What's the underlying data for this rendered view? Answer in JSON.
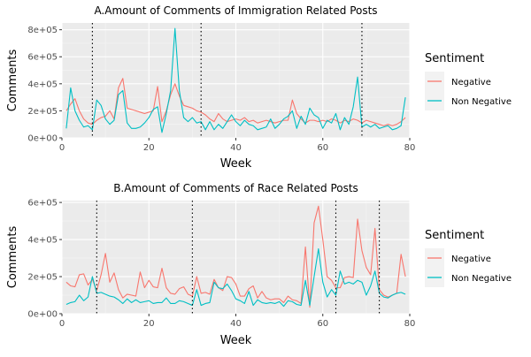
{
  "chart_data": [
    {
      "type": "line",
      "title": "A.Amount of Comments of Immigration Related Posts",
      "xlabel": "Week",
      "ylabel": "Comments",
      "xlim": [
        0,
        80
      ],
      "ylim": [
        0,
        850000
      ],
      "xticks": [
        0,
        20,
        40,
        60,
        80
      ],
      "xtick_labels": [
        "0",
        "20",
        "40",
        "60",
        "80"
      ],
      "yticks": [
        0,
        200000,
        400000,
        600000,
        800000
      ],
      "ytick_labels": [
        "0e+00",
        "2e+05",
        "4e+05",
        "6e+05",
        "8e+05"
      ],
      "vlines": [
        7,
        32,
        69
      ],
      "grid": true,
      "legend": {
        "title": "Sentiment",
        "position": "right",
        "entries": [
          "Negative",
          "Non Negative"
        ]
      },
      "series": [
        {
          "name": "Negative",
          "color": "#F8766D",
          "x": [
            1,
            2,
            3,
            4,
            5,
            6,
            7,
            8,
            9,
            10,
            11,
            12,
            13,
            14,
            15,
            16,
            17,
            18,
            19,
            20,
            21,
            22,
            23,
            24,
            25,
            26,
            27,
            28,
            29,
            30,
            31,
            32,
            33,
            34,
            35,
            36,
            37,
            38,
            39,
            40,
            41,
            42,
            43,
            44,
            45,
            46,
            47,
            48,
            49,
            50,
            51,
            52,
            53,
            54,
            55,
            56,
            57,
            58,
            59,
            60,
            61,
            62,
            63,
            64,
            65,
            66,
            67,
            68,
            69,
            70,
            71,
            72,
            73,
            74,
            75,
            76,
            77,
            78,
            79
          ],
          "values": [
            200000,
            250000,
            290000,
            200000,
            140000,
            110000,
            100000,
            130000,
            150000,
            160000,
            200000,
            140000,
            370000,
            440000,
            220000,
            210000,
            200000,
            190000,
            180000,
            190000,
            200000,
            380000,
            120000,
            200000,
            320000,
            400000,
            310000,
            240000,
            230000,
            220000,
            200000,
            190000,
            170000,
            140000,
            120000,
            180000,
            140000,
            120000,
            130000,
            140000,
            130000,
            150000,
            120000,
            130000,
            110000,
            120000,
            130000,
            120000,
            110000,
            120000,
            130000,
            130000,
            280000,
            180000,
            140000,
            110000,
            130000,
            130000,
            120000,
            130000,
            120000,
            140000,
            130000,
            110000,
            130000,
            120000,
            140000,
            130000,
            110000,
            130000,
            120000,
            110000,
            100000,
            90000,
            100000,
            90000,
            100000,
            120000,
            150000
          ]
        },
        {
          "name": "Non Negative",
          "color": "#00BFC4",
          "x": [
            1,
            2,
            3,
            4,
            5,
            6,
            7,
            8,
            9,
            10,
            11,
            12,
            13,
            14,
            15,
            16,
            17,
            18,
            19,
            20,
            21,
            22,
            23,
            24,
            25,
            26,
            27,
            28,
            29,
            30,
            31,
            32,
            33,
            34,
            35,
            36,
            37,
            38,
            39,
            40,
            41,
            42,
            43,
            44,
            45,
            46,
            47,
            48,
            49,
            50,
            51,
            52,
            53,
            54,
            55,
            56,
            57,
            58,
            59,
            60,
            61,
            62,
            63,
            64,
            65,
            66,
            67,
            68,
            69,
            70,
            71,
            72,
            73,
            74,
            75,
            76,
            77,
            78,
            79
          ],
          "values": [
            70000,
            370000,
            200000,
            130000,
            80000,
            90000,
            60000,
            280000,
            240000,
            140000,
            100000,
            130000,
            320000,
            350000,
            110000,
            70000,
            70000,
            80000,
            110000,
            150000,
            210000,
            230000,
            40000,
            180000,
            350000,
            810000,
            350000,
            150000,
            120000,
            150000,
            110000,
            120000,
            60000,
            120000,
            60000,
            100000,
            70000,
            120000,
            170000,
            120000,
            90000,
            130000,
            100000,
            90000,
            60000,
            70000,
            80000,
            140000,
            70000,
            100000,
            140000,
            160000,
            200000,
            70000,
            160000,
            100000,
            220000,
            170000,
            150000,
            70000,
            130000,
            110000,
            180000,
            60000,
            150000,
            100000,
            230000,
            450000,
            80000,
            100000,
            80000,
            100000,
            70000,
            80000,
            90000,
            60000,
            70000,
            90000,
            300000
          ]
        }
      ]
    },
    {
      "type": "line",
      "title": "B.Amount of Comments of Race Related Posts",
      "xlabel": "Week",
      "ylabel": "Comments",
      "xlim": [
        0,
        80
      ],
      "ylim": [
        0,
        610000
      ],
      "xticks": [
        0,
        20,
        40,
        60,
        80
      ],
      "xtick_labels": [
        "0",
        "20",
        "40",
        "60",
        "80"
      ],
      "yticks": [
        0,
        200000,
        400000,
        600000
      ],
      "ytick_labels": [
        "0e+00",
        "2e+05",
        "4e+05",
        "6e+05"
      ],
      "vlines": [
        8,
        30,
        63,
        73
      ],
      "grid": true,
      "legend": {
        "title": "Sentiment",
        "position": "right",
        "entries": [
          "Negative",
          "Non Negative"
        ]
      },
      "series": [
        {
          "name": "Negative",
          "color": "#F8766D",
          "x": [
            1,
            2,
            3,
            4,
            5,
            6,
            7,
            8,
            9,
            10,
            11,
            12,
            13,
            14,
            15,
            16,
            17,
            18,
            19,
            20,
            21,
            22,
            23,
            24,
            25,
            26,
            27,
            28,
            29,
            30,
            31,
            32,
            33,
            34,
            35,
            36,
            37,
            38,
            39,
            40,
            41,
            42,
            43,
            44,
            45,
            46,
            47,
            48,
            49,
            50,
            51,
            52,
            53,
            54,
            55,
            56,
            57,
            58,
            59,
            60,
            61,
            62,
            63,
            64,
            65,
            66,
            67,
            68,
            69,
            70,
            71,
            72,
            73,
            74,
            75,
            76,
            77,
            78,
            79
          ],
          "values": [
            170000,
            150000,
            145000,
            210000,
            215000,
            155000,
            185000,
            125000,
            210000,
            325000,
            170000,
            220000,
            130000,
            85000,
            105000,
            100000,
            95000,
            225000,
            140000,
            180000,
            145000,
            140000,
            245000,
            140000,
            110000,
            105000,
            135000,
            145000,
            105000,
            95000,
            200000,
            110000,
            115000,
            105000,
            185000,
            140000,
            125000,
            200000,
            195000,
            160000,
            95000,
            95000,
            135000,
            150000,
            85000,
            120000,
            85000,
            75000,
            80000,
            80000,
            60000,
            95000,
            75000,
            70000,
            55000,
            360000,
            35000,
            490000,
            580000,
            400000,
            200000,
            180000,
            140000,
            140000,
            195000,
            200000,
            195000,
            510000,
            340000,
            250000,
            210000,
            460000,
            130000,
            100000,
            90000,
            100000,
            110000,
            320000,
            200000
          ]
        },
        {
          "name": "Non Negative",
          "color": "#00BFC4",
          "x": [
            1,
            2,
            3,
            4,
            5,
            6,
            7,
            8,
            9,
            10,
            11,
            12,
            13,
            14,
            15,
            16,
            17,
            18,
            19,
            20,
            21,
            22,
            23,
            24,
            25,
            26,
            27,
            28,
            29,
            30,
            31,
            32,
            33,
            34,
            35,
            36,
            37,
            38,
            39,
            40,
            41,
            42,
            43,
            44,
            45,
            46,
            47,
            48,
            49,
            50,
            51,
            52,
            53,
            54,
            55,
            56,
            57,
            58,
            59,
            60,
            61,
            62,
            63,
            64,
            65,
            66,
            67,
            68,
            69,
            70,
            71,
            72,
            73,
            74,
            75,
            76,
            77,
            78,
            79
          ],
          "values": [
            50000,
            60000,
            65000,
            100000,
            70000,
            90000,
            200000,
            110000,
            115000,
            105000,
            95000,
            90000,
            75000,
            55000,
            80000,
            60000,
            75000,
            60000,
            65000,
            70000,
            55000,
            60000,
            60000,
            85000,
            55000,
            55000,
            70000,
            65000,
            55000,
            45000,
            130000,
            45000,
            55000,
            60000,
            170000,
            140000,
            135000,
            160000,
            125000,
            80000,
            70000,
            55000,
            120000,
            45000,
            75000,
            60000,
            55000,
            60000,
            55000,
            65000,
            40000,
            70000,
            65000,
            50000,
            45000,
            180000,
            45000,
            200000,
            350000,
            170000,
            90000,
            130000,
            100000,
            230000,
            160000,
            170000,
            160000,
            180000,
            170000,
            100000,
            150000,
            230000,
            110000,
            90000,
            85000,
            100000,
            110000,
            115000,
            105000
          ]
        }
      ]
    }
  ]
}
